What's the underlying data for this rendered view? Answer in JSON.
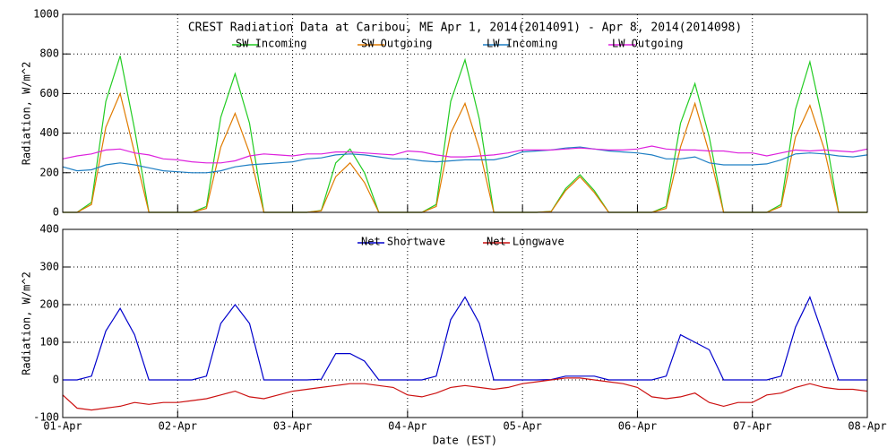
{
  "chart_data": [
    {
      "type": "line",
      "title": "CREST Radiation Data at Caribou, ME   Apr  1, 2014(2014091) - Apr  8, 2014(2014098)",
      "ylabel": "Radiation, W/m^2",
      "x": [
        0,
        0.125,
        0.25,
        0.375,
        0.5,
        0.625,
        0.75,
        0.875,
        1,
        1.125,
        1.25,
        1.375,
        1.5,
        1.625,
        1.75,
        1.875,
        2,
        2.125,
        2.25,
        2.375,
        2.5,
        2.625,
        2.75,
        2.875,
        3,
        3.125,
        3.25,
        3.375,
        3.5,
        3.625,
        3.75,
        3.875,
        4,
        4.125,
        4.25,
        4.375,
        4.5,
        4.625,
        4.75,
        4.875,
        5,
        5.125,
        5.25,
        5.375,
        5.5,
        5.625,
        5.75,
        5.875,
        6,
        6.125,
        6.25,
        6.375,
        6.5,
        6.625,
        6.75,
        6.875,
        7
      ],
      "xlim": [
        0,
        7
      ],
      "xticks": [
        0,
        1,
        2,
        3,
        4,
        5,
        6,
        7
      ],
      "ylim": [
        0,
        1000
      ],
      "yticks": [
        0,
        200,
        400,
        600,
        800,
        1000
      ],
      "grid": true,
      "series": [
        {
          "name": "SW Incoming",
          "color": "#22cc22",
          "values": [
            0,
            0,
            50,
            560,
            790,
            420,
            0,
            0,
            0,
            0,
            30,
            480,
            700,
            450,
            0,
            0,
            0,
            0,
            10,
            250,
            320,
            200,
            0,
            0,
            0,
            0,
            40,
            560,
            770,
            470,
            0,
            0,
            0,
            0,
            5,
            120,
            190,
            110,
            0,
            0,
            0,
            0,
            30,
            450,
            650,
            380,
            0,
            0,
            0,
            0,
            40,
            520,
            760,
            430,
            0,
            0,
            0
          ]
        },
        {
          "name": "SW Outgoing",
          "color": "#e07b00",
          "values": [
            0,
            0,
            40,
            430,
            600,
            300,
            0,
            0,
            0,
            0,
            20,
            330,
            500,
            300,
            0,
            0,
            0,
            0,
            8,
            180,
            250,
            150,
            0,
            0,
            0,
            0,
            30,
            400,
            550,
            320,
            0,
            0,
            0,
            0,
            4,
            110,
            180,
            100,
            0,
            0,
            0,
            0,
            20,
            330,
            550,
            300,
            0,
            0,
            0,
            0,
            30,
            380,
            540,
            320,
            0,
            0,
            0
          ]
        },
        {
          "name": "LW Incoming",
          "color": "#1f7fc4",
          "values": [
            230,
            210,
            215,
            240,
            250,
            240,
            225,
            210,
            205,
            200,
            200,
            210,
            230,
            240,
            245,
            250,
            255,
            270,
            275,
            290,
            295,
            290,
            280,
            270,
            270,
            260,
            255,
            260,
            265,
            265,
            265,
            280,
            305,
            310,
            315,
            325,
            330,
            320,
            310,
            305,
            300,
            290,
            270,
            270,
            280,
            250,
            240,
            240,
            240,
            245,
            265,
            295,
            300,
            295,
            285,
            280,
            290
          ]
        },
        {
          "name": "LW Outgoing",
          "color": "#dd22dd",
          "values": [
            270,
            285,
            295,
            315,
            320,
            300,
            290,
            270,
            265,
            255,
            250,
            250,
            260,
            285,
            295,
            290,
            285,
            295,
            295,
            305,
            305,
            300,
            295,
            290,
            310,
            305,
            290,
            280,
            280,
            285,
            290,
            300,
            315,
            315,
            315,
            320,
            325,
            320,
            315,
            315,
            320,
            335,
            320,
            315,
            315,
            310,
            310,
            300,
            300,
            285,
            300,
            315,
            310,
            315,
            310,
            305,
            320
          ]
        }
      ]
    },
    {
      "type": "line",
      "ylabel": "Radiation, W/m^2",
      "xlabel": "Date (EST)",
      "x": [
        0,
        0.125,
        0.25,
        0.375,
        0.5,
        0.625,
        0.75,
        0.875,
        1,
        1.125,
        1.25,
        1.375,
        1.5,
        1.625,
        1.75,
        1.875,
        2,
        2.125,
        2.25,
        2.375,
        2.5,
        2.625,
        2.75,
        2.875,
        3,
        3.125,
        3.25,
        3.375,
        3.5,
        3.625,
        3.75,
        3.875,
        4,
        4.125,
        4.25,
        4.375,
        4.5,
        4.625,
        4.75,
        4.875,
        5,
        5.125,
        5.25,
        5.375,
        5.5,
        5.625,
        5.75,
        5.875,
        6,
        6.125,
        6.25,
        6.375,
        6.5,
        6.625,
        6.75,
        6.875,
        7
      ],
      "xlim": [
        0,
        7
      ],
      "xticks": [
        {
          "value": 0,
          "label": "01-Apr"
        },
        {
          "value": 1,
          "label": "02-Apr"
        },
        {
          "value": 2,
          "label": "03-Apr"
        },
        {
          "value": 3,
          "label": "04-Apr"
        },
        {
          "value": 4,
          "label": "05-Apr"
        },
        {
          "value": 5,
          "label": "06-Apr"
        },
        {
          "value": 6,
          "label": "07-Apr"
        },
        {
          "value": 7,
          "label": "08-Apr"
        }
      ],
      "ylim": [
        -100,
        400
      ],
      "yticks": [
        -100,
        0,
        100,
        200,
        300,
        400
      ],
      "grid": true,
      "series": [
        {
          "name": "Net Shortwave",
          "color": "#0000cc",
          "values": [
            0,
            0,
            10,
            130,
            190,
            120,
            0,
            0,
            0,
            0,
            10,
            150,
            200,
            150,
            0,
            0,
            0,
            0,
            2,
            70,
            70,
            50,
            0,
            0,
            0,
            0,
            10,
            160,
            220,
            150,
            0,
            0,
            0,
            0,
            1,
            10,
            10,
            10,
            0,
            0,
            0,
            0,
            10,
            120,
            100,
            80,
            0,
            0,
            0,
            0,
            10,
            140,
            220,
            110,
            0,
            0,
            0
          ]
        },
        {
          "name": "Net Longwave",
          "color": "#cc1111",
          "values": [
            -40,
            -75,
            -80,
            -75,
            -70,
            -60,
            -65,
            -60,
            -60,
            -55,
            -50,
            -40,
            -30,
            -45,
            -50,
            -40,
            -30,
            -25,
            -20,
            -15,
            -10,
            -10,
            -15,
            -20,
            -40,
            -45,
            -35,
            -20,
            -15,
            -20,
            -25,
            -20,
            -10,
            -5,
            0,
            5,
            5,
            0,
            -5,
            -10,
            -20,
            -45,
            -50,
            -45,
            -35,
            -60,
            -70,
            -60,
            -60,
            -40,
            -35,
            -20,
            -10,
            -20,
            -25,
            -25,
            -30
          ]
        }
      ]
    }
  ]
}
